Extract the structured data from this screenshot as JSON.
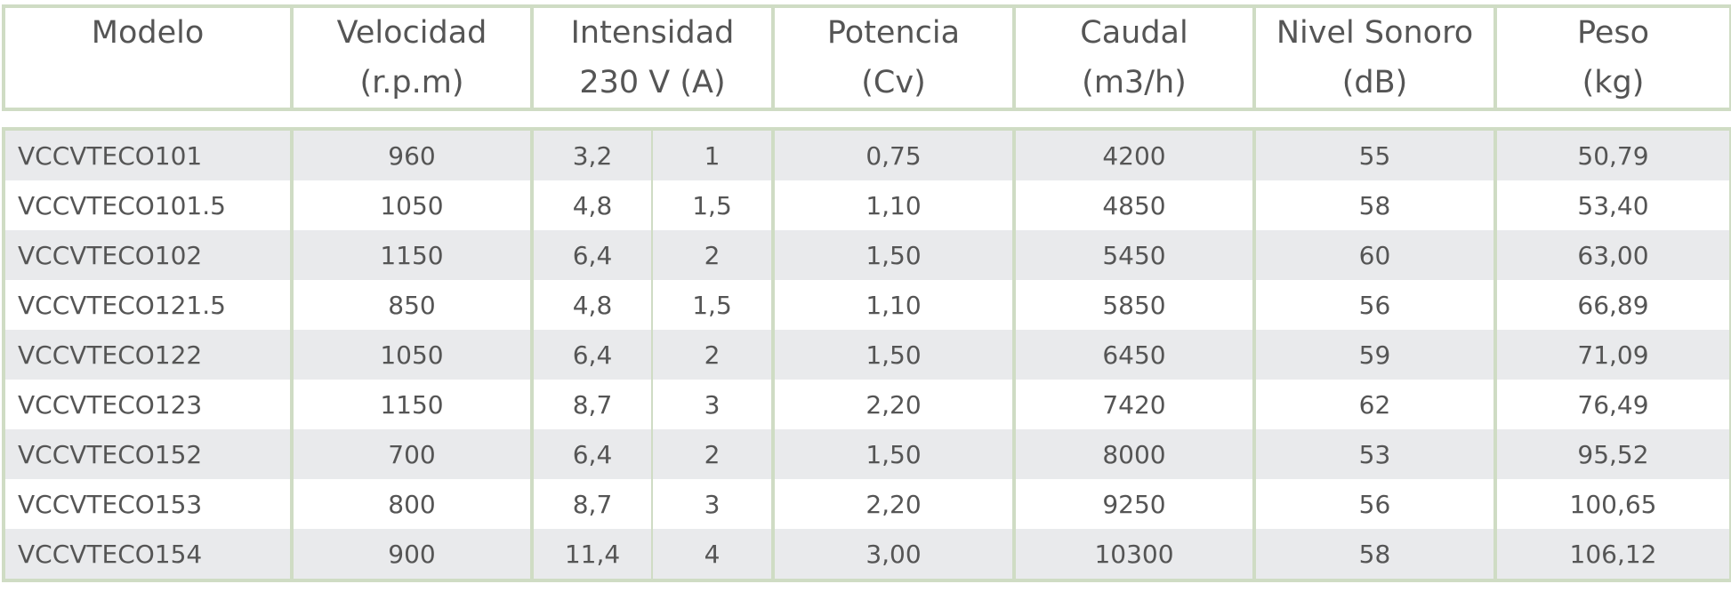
{
  "headers": [
    {
      "line1": "Modelo",
      "line2": ""
    },
    {
      "line1": "Velocidad",
      "line2": "(r.p.m)"
    },
    {
      "line1": "Intensidad",
      "line2": "230 V (A)"
    },
    {
      "line1": "Potencia",
      "line2": "(Cv)"
    },
    {
      "line1": "Caudal",
      "line2": "(m3/h)"
    },
    {
      "line1": "Nivel Sonoro",
      "line2": "(dB)"
    },
    {
      "line1": "Peso",
      "line2": "(kg)"
    }
  ],
  "rows": [
    {
      "modelo": "VCCVTECO101",
      "velocidad": "960",
      "intensidad_a": "3,2",
      "intensidad_b": "1",
      "potencia": "0,75",
      "caudal": "4200",
      "nivel": "55",
      "peso": "50,79"
    },
    {
      "modelo": "VCCVTECO101.5",
      "velocidad": "1050",
      "intensidad_a": "4,8",
      "intensidad_b": "1,5",
      "potencia": "1,10",
      "caudal": "4850",
      "nivel": "58",
      "peso": "53,40"
    },
    {
      "modelo": "VCCVTECO102",
      "velocidad": "1150",
      "intensidad_a": "6,4",
      "intensidad_b": "2",
      "potencia": "1,50",
      "caudal": "5450",
      "nivel": "60",
      "peso": "63,00"
    },
    {
      "modelo": "VCCVTECO121.5",
      "velocidad": "850",
      "intensidad_a": "4,8",
      "intensidad_b": "1,5",
      "potencia": "1,10",
      "caudal": "5850",
      "nivel": "56",
      "peso": "66,89"
    },
    {
      "modelo": "VCCVTECO122",
      "velocidad": "1050",
      "intensidad_a": "6,4",
      "intensidad_b": "2",
      "potencia": "1,50",
      "caudal": "6450",
      "nivel": "59",
      "peso": "71,09"
    },
    {
      "modelo": "VCCVTECO123",
      "velocidad": "1150",
      "intensidad_a": "8,7",
      "intensidad_b": "3",
      "potencia": "2,20",
      "caudal": "7420",
      "nivel": "62",
      "peso": "76,49"
    },
    {
      "modelo": "VCCVTECO152",
      "velocidad": "700",
      "intensidad_a": "6,4",
      "intensidad_b": "2",
      "potencia": "1,50",
      "caudal": "8000",
      "nivel": "53",
      "peso": "95,52"
    },
    {
      "modelo": "VCCVTECO153",
      "velocidad": "800",
      "intensidad_a": "8,7",
      "intensidad_b": "3",
      "potencia": "2,20",
      "caudal": "9250",
      "nivel": "56",
      "peso": "100,65"
    },
    {
      "modelo": "VCCVTECO154",
      "velocidad": "900",
      "intensidad_a": "11,4",
      "intensidad_b": "4",
      "potencia": "3,00",
      "caudal": "10300",
      "nivel": "58",
      "peso": "106,12"
    }
  ],
  "colors": {
    "border": "#cfdcc4",
    "row_shade": "#e9eaec",
    "text": "#555555"
  }
}
